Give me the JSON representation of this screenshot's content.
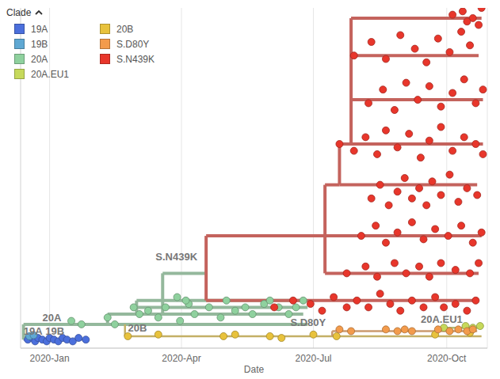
{
  "chart_data": {
    "type": "scatter",
    "legend_title": "Clade",
    "legend": "top-left",
    "xlabel": "Date",
    "grid": true,
    "tick_labels": "x",
    "marker": "circle",
    "xlim": [
      -20,
      302
    ],
    "xticks": [
      {
        "value": 0,
        "label": "2020-Jan"
      },
      {
        "value": 91,
        "label": "2020-Apr"
      },
      {
        "value": 182,
        "label": "2020-Jul"
      },
      {
        "value": 274,
        "label": "2020-Oct"
      }
    ],
    "ylim": [
      0,
      100
    ],
    "series": [
      {
        "name": "19A",
        "color": "#4b6fdc",
        "x": [
          -15,
          -12,
          -10,
          -8,
          -5,
          -2,
          0,
          3,
          6,
          9,
          12,
          16,
          20,
          25
        ],
        "values": [
          2.5,
          3,
          2,
          3,
          2.5,
          2,
          3,
          2.5,
          2,
          3,
          2.5,
          2,
          3,
          2.5
        ],
        "branches": [
          [
            -18,
            2.5,
            26,
            2.5
          ]
        ]
      },
      {
        "name": "19B",
        "color": "#5fa8d3",
        "x": [
          -14,
          -11
        ],
        "values": [
          3.5,
          3.8
        ],
        "branches": [
          [
            -18,
            3.5,
            -10,
            3.5
          ]
        ]
      },
      {
        "name": "20A",
        "color": "#8fd19e",
        "x": [
          15,
          22,
          40,
          45,
          58,
          62,
          68,
          75,
          80,
          90,
          96,
          100,
          110,
          118,
          122,
          128,
          135,
          140,
          148,
          152,
          158,
          165,
          170,
          175,
          88,
          94
        ],
        "values": [
          8,
          7,
          9,
          7,
          12,
          10,
          11,
          9,
          12,
          8,
          13,
          10,
          12,
          9,
          14,
          11,
          12,
          10,
          13,
          14,
          12,
          10,
          12,
          14,
          15,
          14
        ],
        "branches": [
          [
            -18,
            2.5,
            -18,
            7
          ],
          [
            -18,
            7,
            178,
            7
          ],
          [
            40,
            7,
            40,
            10
          ],
          [
            40,
            10,
            175,
            10
          ],
          [
            60,
            10,
            60,
            14
          ],
          [
            60,
            12,
            178,
            12
          ],
          [
            60,
            14,
            176,
            14
          ],
          [
            78,
            10,
            78,
            22
          ],
          [
            78,
            22,
            108,
            22
          ]
        ]
      },
      {
        "name": "20A.EU1",
        "color": "#c6d95b",
        "x": [
          272,
          287,
          292,
          297
        ],
        "values": [
          6,
          6.5,
          6,
          6.5
        ],
        "branches": [
          [
            268,
            5,
            268,
            6
          ],
          [
            268,
            6,
            298,
            6
          ]
        ]
      },
      {
        "name": "20B",
        "color": "#e8c23c",
        "x": [
          54,
          75,
          120,
          128,
          152,
          160,
          182,
          198,
          266,
          290
        ],
        "values": [
          3.5,
          4,
          3.5,
          4,
          3.5,
          3,
          4,
          3.5,
          4,
          4.5
        ],
        "branches": [
          [
            52,
            7,
            52,
            3.5
          ],
          [
            52,
            3.5,
            298,
            3.5
          ]
        ]
      },
      {
        "name": "S.D80Y",
        "color": "#f39b4c",
        "x": [
          200,
          208,
          232,
          240,
          245,
          250,
          268,
          276,
          282,
          288,
          292
        ],
        "values": [
          5.5,
          5,
          5.5,
          5,
          5.5,
          5,
          5.5,
          5,
          5.5,
          5,
          5.5
        ],
        "branches": [
          [
            195,
            3.5,
            195,
            5
          ],
          [
            195,
            5,
            295,
            5
          ]
        ]
      },
      {
        "name": "S.N439K",
        "color": "#e8362b",
        "x": [
          155,
          168,
          180,
          188,
          196,
          205,
          212,
          220,
          228,
          235,
          242,
          250,
          258,
          266,
          272,
          280,
          288,
          294,
          205,
          218,
          226,
          238,
          246,
          255,
          262,
          270,
          280,
          290,
          296,
          215,
          225,
          232,
          240,
          250,
          258,
          266,
          275,
          284,
          292,
          298,
          222,
          228,
          234,
          240,
          245,
          250,
          255,
          260,
          264,
          270,
          276,
          282,
          288,
          295,
          200,
          210,
          218,
          226,
          232,
          240,
          248,
          256,
          262,
          270,
          278,
          286,
          294,
          299,
          220,
          230,
          238,
          246,
          254,
          262,
          270,
          278,
          286,
          294,
          299,
          210,
          222,
          232,
          242,
          252,
          260,
          268,
          276,
          284,
          290,
          296,
          278,
          285,
          292,
          298,
          288
        ],
        "values": [
          12,
          14,
          13,
          11,
          15,
          12,
          14,
          12,
          16,
          13,
          11,
          14,
          12,
          15,
          12,
          13,
          11,
          14,
          22,
          24,
          21,
          25,
          22,
          24,
          21,
          25,
          23,
          22,
          25,
          33,
          36,
          31,
          34,
          37,
          32,
          35,
          33,
          36,
          31,
          34,
          44,
          48,
          42,
          46,
          50,
          44,
          47,
          42,
          49,
          45,
          51,
          43,
          47,
          45,
          60,
          58,
          62,
          57,
          64,
          59,
          63,
          56,
          61,
          65,
          58,
          62,
          60,
          57,
          72,
          76,
          70,
          78,
          73,
          77,
          71,
          75,
          79,
          72,
          76,
          86,
          90,
          85,
          92,
          88,
          84,
          91,
          87,
          93,
          89,
          95,
          98,
          99,
          97,
          100,
          96
        ],
        "branches": [
          [
            108,
            14,
            108,
            33
          ],
          [
            108,
            14,
            294,
            14
          ],
          [
            108,
            33,
            190,
            33
          ],
          [
            190,
            22,
            190,
            48
          ],
          [
            190,
            22,
            296,
            22
          ],
          [
            190,
            33,
            298,
            33
          ],
          [
            190,
            48,
            200,
            48
          ],
          [
            200,
            48,
            200,
            60
          ],
          [
            200,
            60,
            299,
            60
          ],
          [
            200,
            48,
            295,
            48
          ],
          [
            200,
            60,
            208,
            60
          ],
          [
            208,
            60,
            208,
            97
          ],
          [
            208,
            73,
            299,
            73
          ],
          [
            208,
            86,
            296,
            86
          ],
          [
            208,
            97,
            298,
            97
          ]
        ]
      }
    ],
    "annotations": [
      {
        "text": "19A",
        "x": -19,
        "y": 5
      },
      {
        "text": "19B",
        "x": -4,
        "y": 5
      },
      {
        "text": "20A",
        "x": -6,
        "y": 9
      },
      {
        "text": "20B",
        "x": 53,
        "y": 6
      },
      {
        "text": "S.N439K",
        "x": 72,
        "y": 27
      },
      {
        "text": "S.D80Y",
        "x": 165,
        "y": 7.5
      },
      {
        "text": "20A.EU1",
        "x": 255,
        "y": 8.5
      }
    ]
  }
}
